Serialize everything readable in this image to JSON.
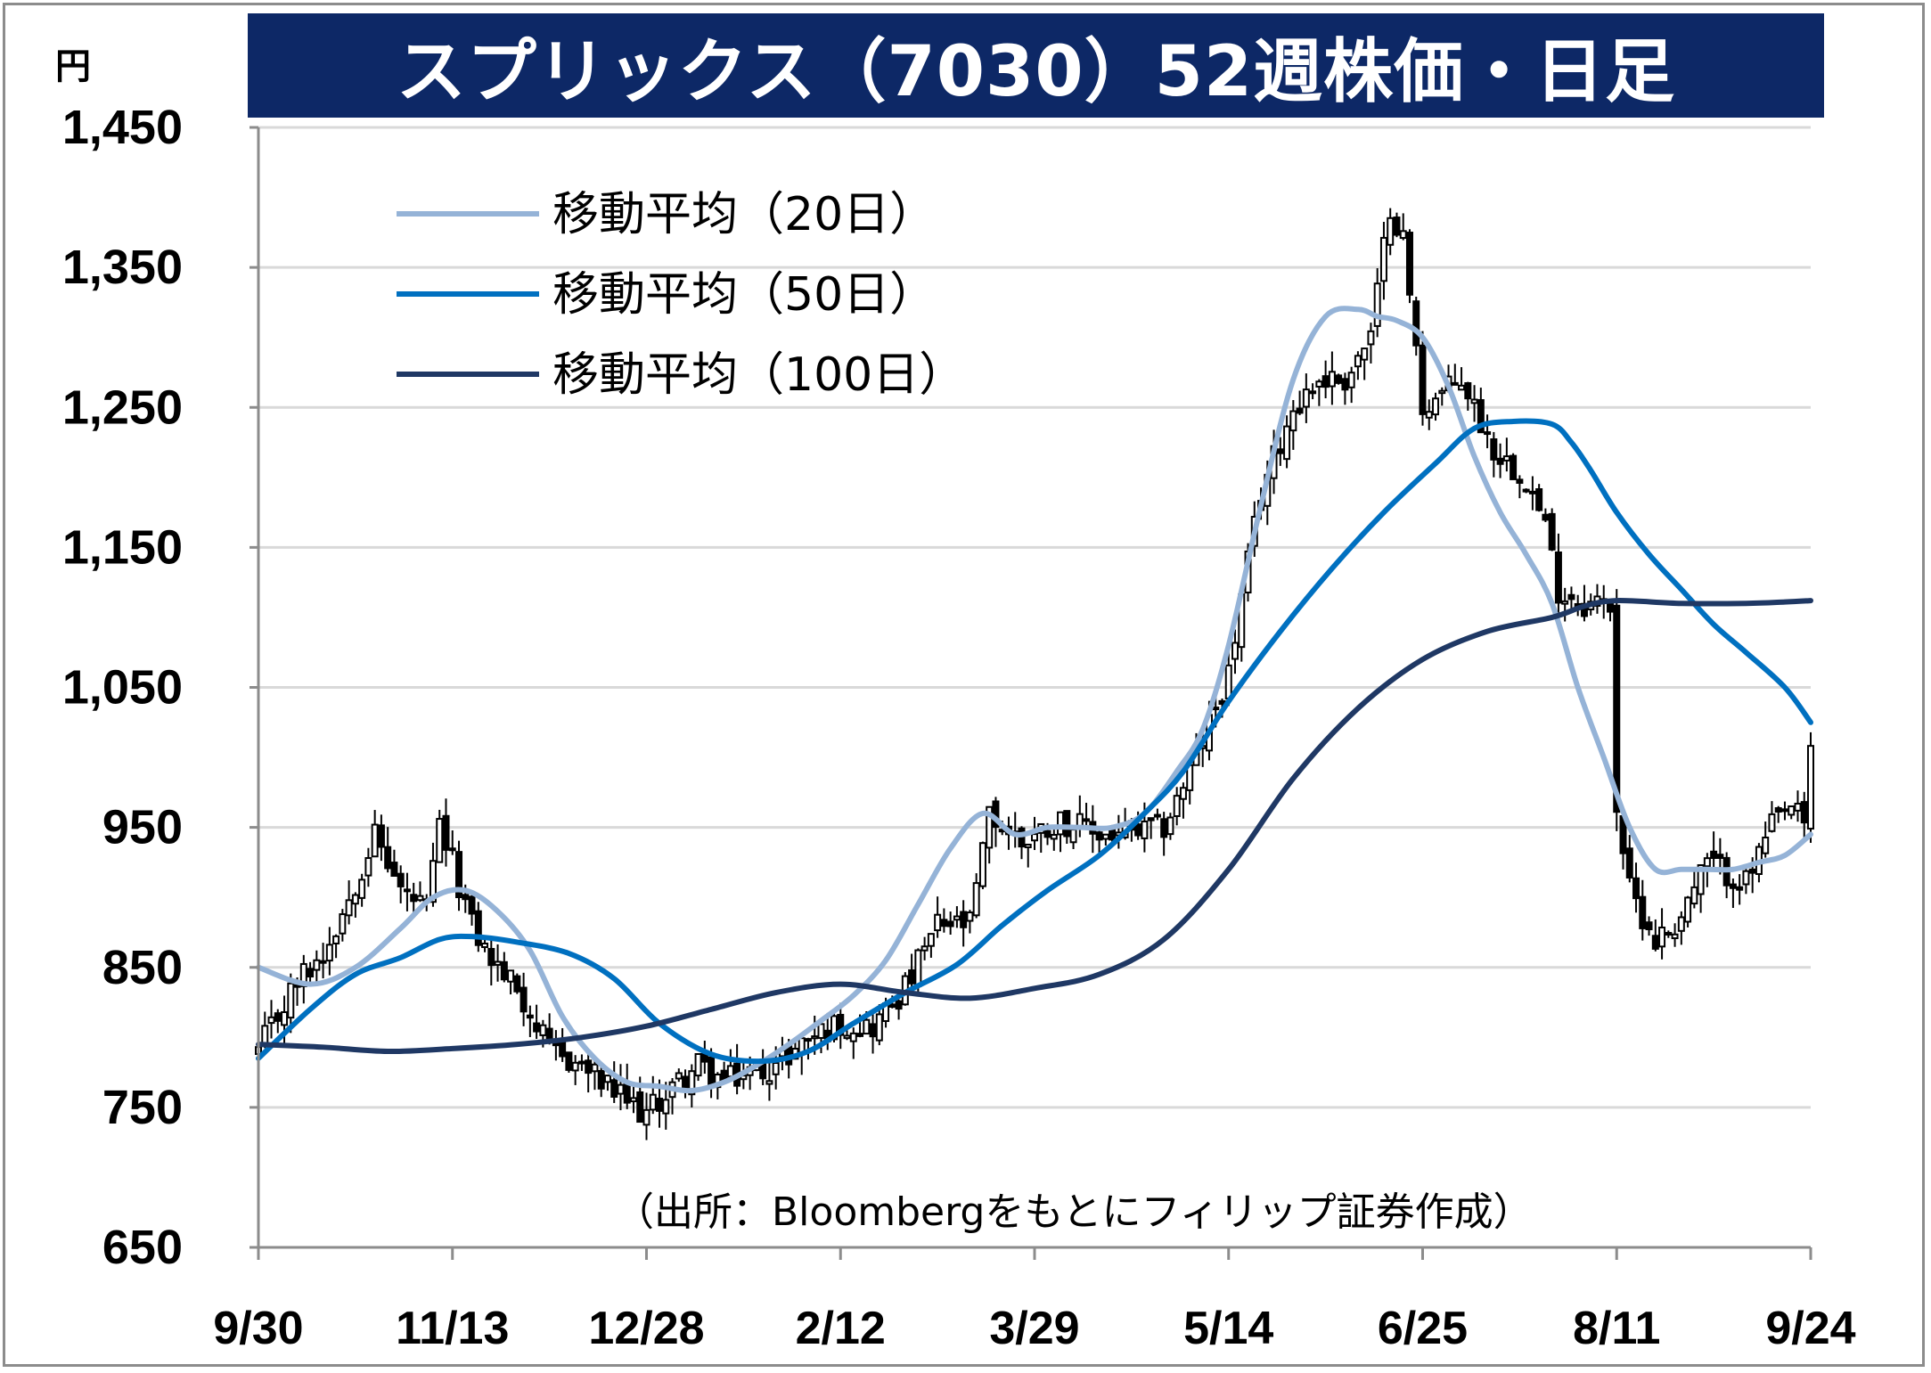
{
  "title": "スプリックス（7030）52週株価・日足",
  "unit": "円",
  "source": "（出所：Bloombergをもとにフィリップ証券作成）",
  "colors": {
    "title_bg": "#0d2866",
    "ma20": "#95b3d7",
    "ma50": "#0070c0",
    "ma100": "#1f3864",
    "grid": "#d9d9d9",
    "axis": "#8c8c8c",
    "candle": "#000000"
  },
  "chart_data": {
    "type": "candlestick",
    "ylim": [
      650,
      1450
    ],
    "yticks": [
      650,
      750,
      850,
      950,
      1050,
      1150,
      1250,
      1350,
      1450
    ],
    "ytick_labels": [
      "650",
      "750",
      "850",
      "950",
      "1,050",
      "1,150",
      "1,250",
      "1,350",
      "1,450"
    ],
    "grid": "horizontal",
    "xticks": [
      {
        "label": "9/30",
        "index": 0
      },
      {
        "label": "11/13",
        "index": 30
      },
      {
        "label": "12/28",
        "index": 60
      },
      {
        "label": "2/12",
        "index": 90
      },
      {
        "label": "3/29",
        "index": 120
      },
      {
        "label": "5/14",
        "index": 150
      },
      {
        "label": "6/25",
        "index": 180
      },
      {
        "label": "8/11",
        "index": 210
      },
      {
        "label": "9/24",
        "index": 240
      }
    ],
    "n_days": 241,
    "close_anchors": [
      [
        0,
        790
      ],
      [
        6,
        840
      ],
      [
        10,
        860
      ],
      [
        14,
        900
      ],
      [
        18,
        945
      ],
      [
        22,
        905
      ],
      [
        26,
        890
      ],
      [
        28,
        950
      ],
      [
        30,
        925
      ],
      [
        33,
        880
      ],
      [
        36,
        855
      ],
      [
        40,
        835
      ],
      [
        45,
        790
      ],
      [
        50,
        780
      ],
      [
        55,
        760
      ],
      [
        60,
        745
      ],
      [
        63,
        760
      ],
      [
        68,
        780
      ],
      [
        72,
        768
      ],
      [
        76,
        775
      ],
      [
        80,
        780
      ],
      [
        85,
        800
      ],
      [
        90,
        810
      ],
      [
        95,
        808
      ],
      [
        100,
        835
      ],
      [
        105,
        880
      ],
      [
        110,
        880
      ],
      [
        113,
        958
      ],
      [
        118,
        940
      ],
      [
        124,
        955
      ],
      [
        130,
        945
      ],
      [
        135,
        945
      ],
      [
        140,
        950
      ],
      [
        145,
        1000
      ],
      [
        150,
        1060
      ],
      [
        155,
        1190
      ],
      [
        160,
        1250
      ],
      [
        164,
        1270
      ],
      [
        168,
        1270
      ],
      [
        172,
        1300
      ],
      [
        175,
        1395
      ],
      [
        177,
        1370
      ],
      [
        180,
        1250
      ],
      [
        186,
        1270
      ],
      [
        191,
        1220
      ],
      [
        196,
        1200
      ],
      [
        199,
        1165
      ],
      [
        201,
        1120
      ],
      [
        205,
        1110
      ],
      [
        209,
        1110
      ],
      [
        210,
        965
      ],
      [
        212,
        905
      ],
      [
        216,
        870
      ],
      [
        219,
        880
      ],
      [
        224,
        925
      ],
      [
        230,
        910
      ],
      [
        234,
        950
      ],
      [
        237,
        965
      ],
      [
        239,
        950
      ],
      [
        240,
        1005
      ]
    ],
    "series": [
      {
        "name": "移動平均（20日）",
        "color": "#95b3d7",
        "x": [
          0,
          8,
          15,
          22,
          27,
          32,
          37,
          42,
          47,
          52,
          57,
          62,
          67,
          72,
          77,
          82,
          87,
          92,
          97,
          102,
          107,
          112,
          117,
          122,
          127,
          132,
          137,
          142,
          146,
          150,
          155,
          160,
          165,
          170,
          173,
          176,
          180,
          184,
          188,
          192,
          196,
          200,
          204,
          208,
          212,
          216,
          220,
          224,
          228,
          232,
          236,
          240
        ],
        "y": [
          850,
          838,
          850,
          878,
          900,
          905,
          890,
          862,
          815,
          785,
          768,
          765,
          762,
          768,
          780,
          795,
          812,
          830,
          855,
          895,
          935,
          960,
          945,
          950,
          950,
          950,
          960,
          990,
          1020,
          1080,
          1180,
          1270,
          1315,
          1320,
          1315,
          1312,
          1300,
          1265,
          1215,
          1175,
          1145,
          1110,
          1050,
          1000,
          950,
          920,
          920,
          920,
          920,
          925,
          930,
          945
        ]
      },
      {
        "name": "移動平均（50日）",
        "color": "#0070c0",
        "x": [
          0,
          8,
          15,
          22,
          28,
          33,
          40,
          48,
          55,
          62,
          70,
          78,
          85,
          92,
          100,
          108,
          115,
          122,
          130,
          137,
          143,
          150,
          158,
          166,
          174,
          182,
          188,
          194,
          200,
          203,
          206,
          210,
          215,
          220,
          225,
          230,
          236,
          240
        ],
        "y": [
          785,
          820,
          845,
          857,
          870,
          872,
          868,
          860,
          842,
          810,
          788,
          783,
          790,
          810,
          832,
          852,
          880,
          905,
          930,
          960,
          990,
          1040,
          1090,
          1135,
          1175,
          1210,
          1235,
          1240,
          1238,
          1225,
          1205,
          1175,
          1145,
          1120,
          1095,
          1075,
          1050,
          1025
        ]
      },
      {
        "name": "移動平均（100日）",
        "color": "#1f3864",
        "x": [
          0,
          10,
          20,
          30,
          40,
          50,
          60,
          70,
          80,
          90,
          100,
          110,
          120,
          130,
          140,
          150,
          160,
          170,
          180,
          190,
          200,
          205,
          210,
          220,
          230,
          236,
          240
        ],
        "y": [
          795,
          793,
          790,
          792,
          795,
          800,
          808,
          820,
          832,
          838,
          832,
          828,
          835,
          845,
          870,
          920,
          985,
          1035,
          1070,
          1090,
          1100,
          1108,
          1112,
          1110,
          1110,
          1111,
          1112
        ]
      }
    ]
  },
  "legend": {
    "items": [
      {
        "label": "移動平均（20日）",
        "color": "#95b3d7"
      },
      {
        "label": "移動平均（50日）",
        "color": "#0070c0"
      },
      {
        "label": "移動平均（100日）",
        "color": "#1f3864"
      }
    ]
  }
}
